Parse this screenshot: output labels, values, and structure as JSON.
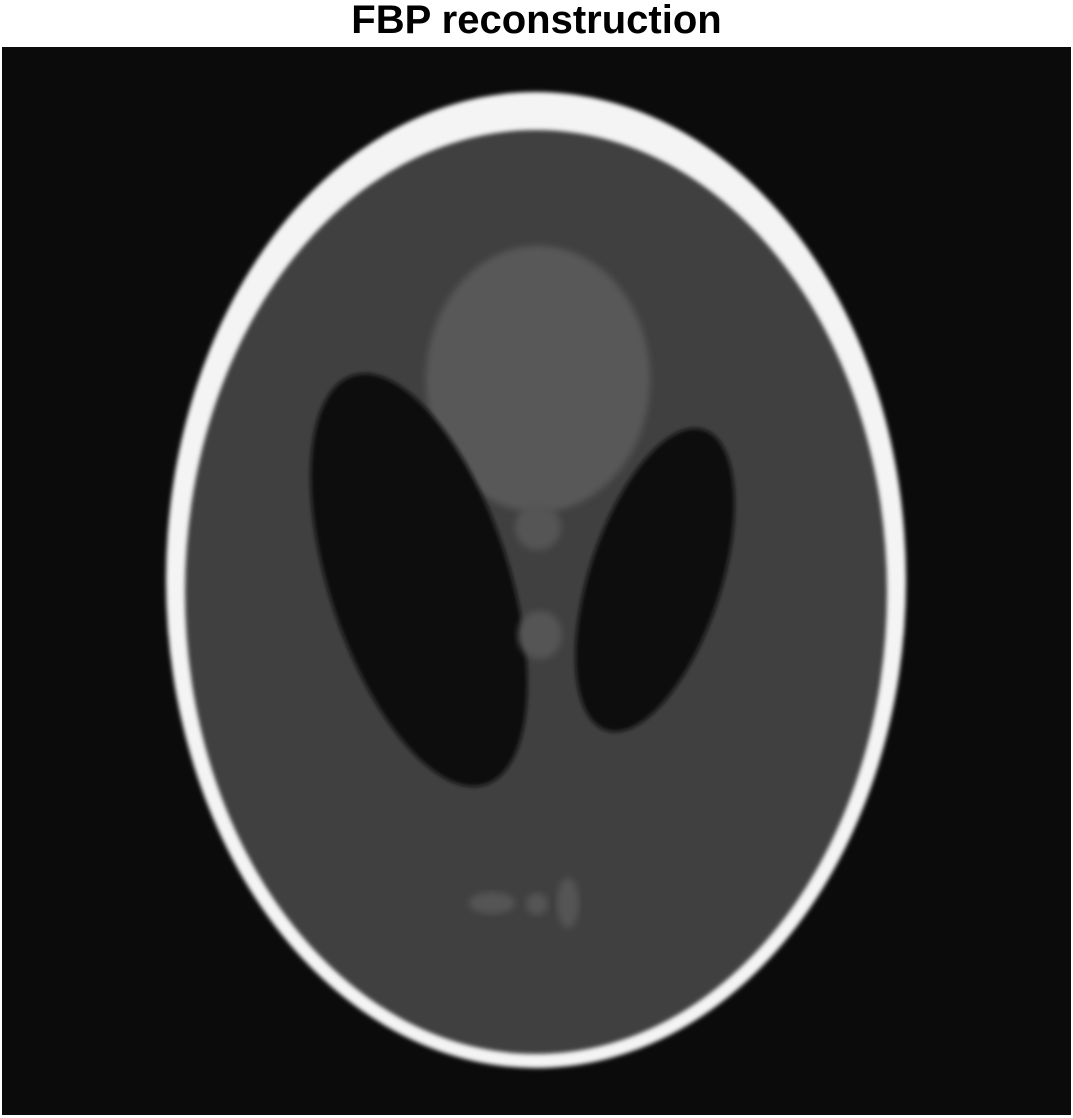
{
  "figure": {
    "title": "FBP reconstruction"
  },
  "image": {
    "subject": "Shepp-Logan phantom",
    "colormap": "grayscale",
    "colors": {
      "background": "#0b0b0b",
      "skull": "#f4f4f4",
      "brain": "#3f3f3f",
      "dark_ellipses": "#0d0d0d",
      "bright_ellipse": "#585858",
      "small_features": "#555555"
    }
  }
}
